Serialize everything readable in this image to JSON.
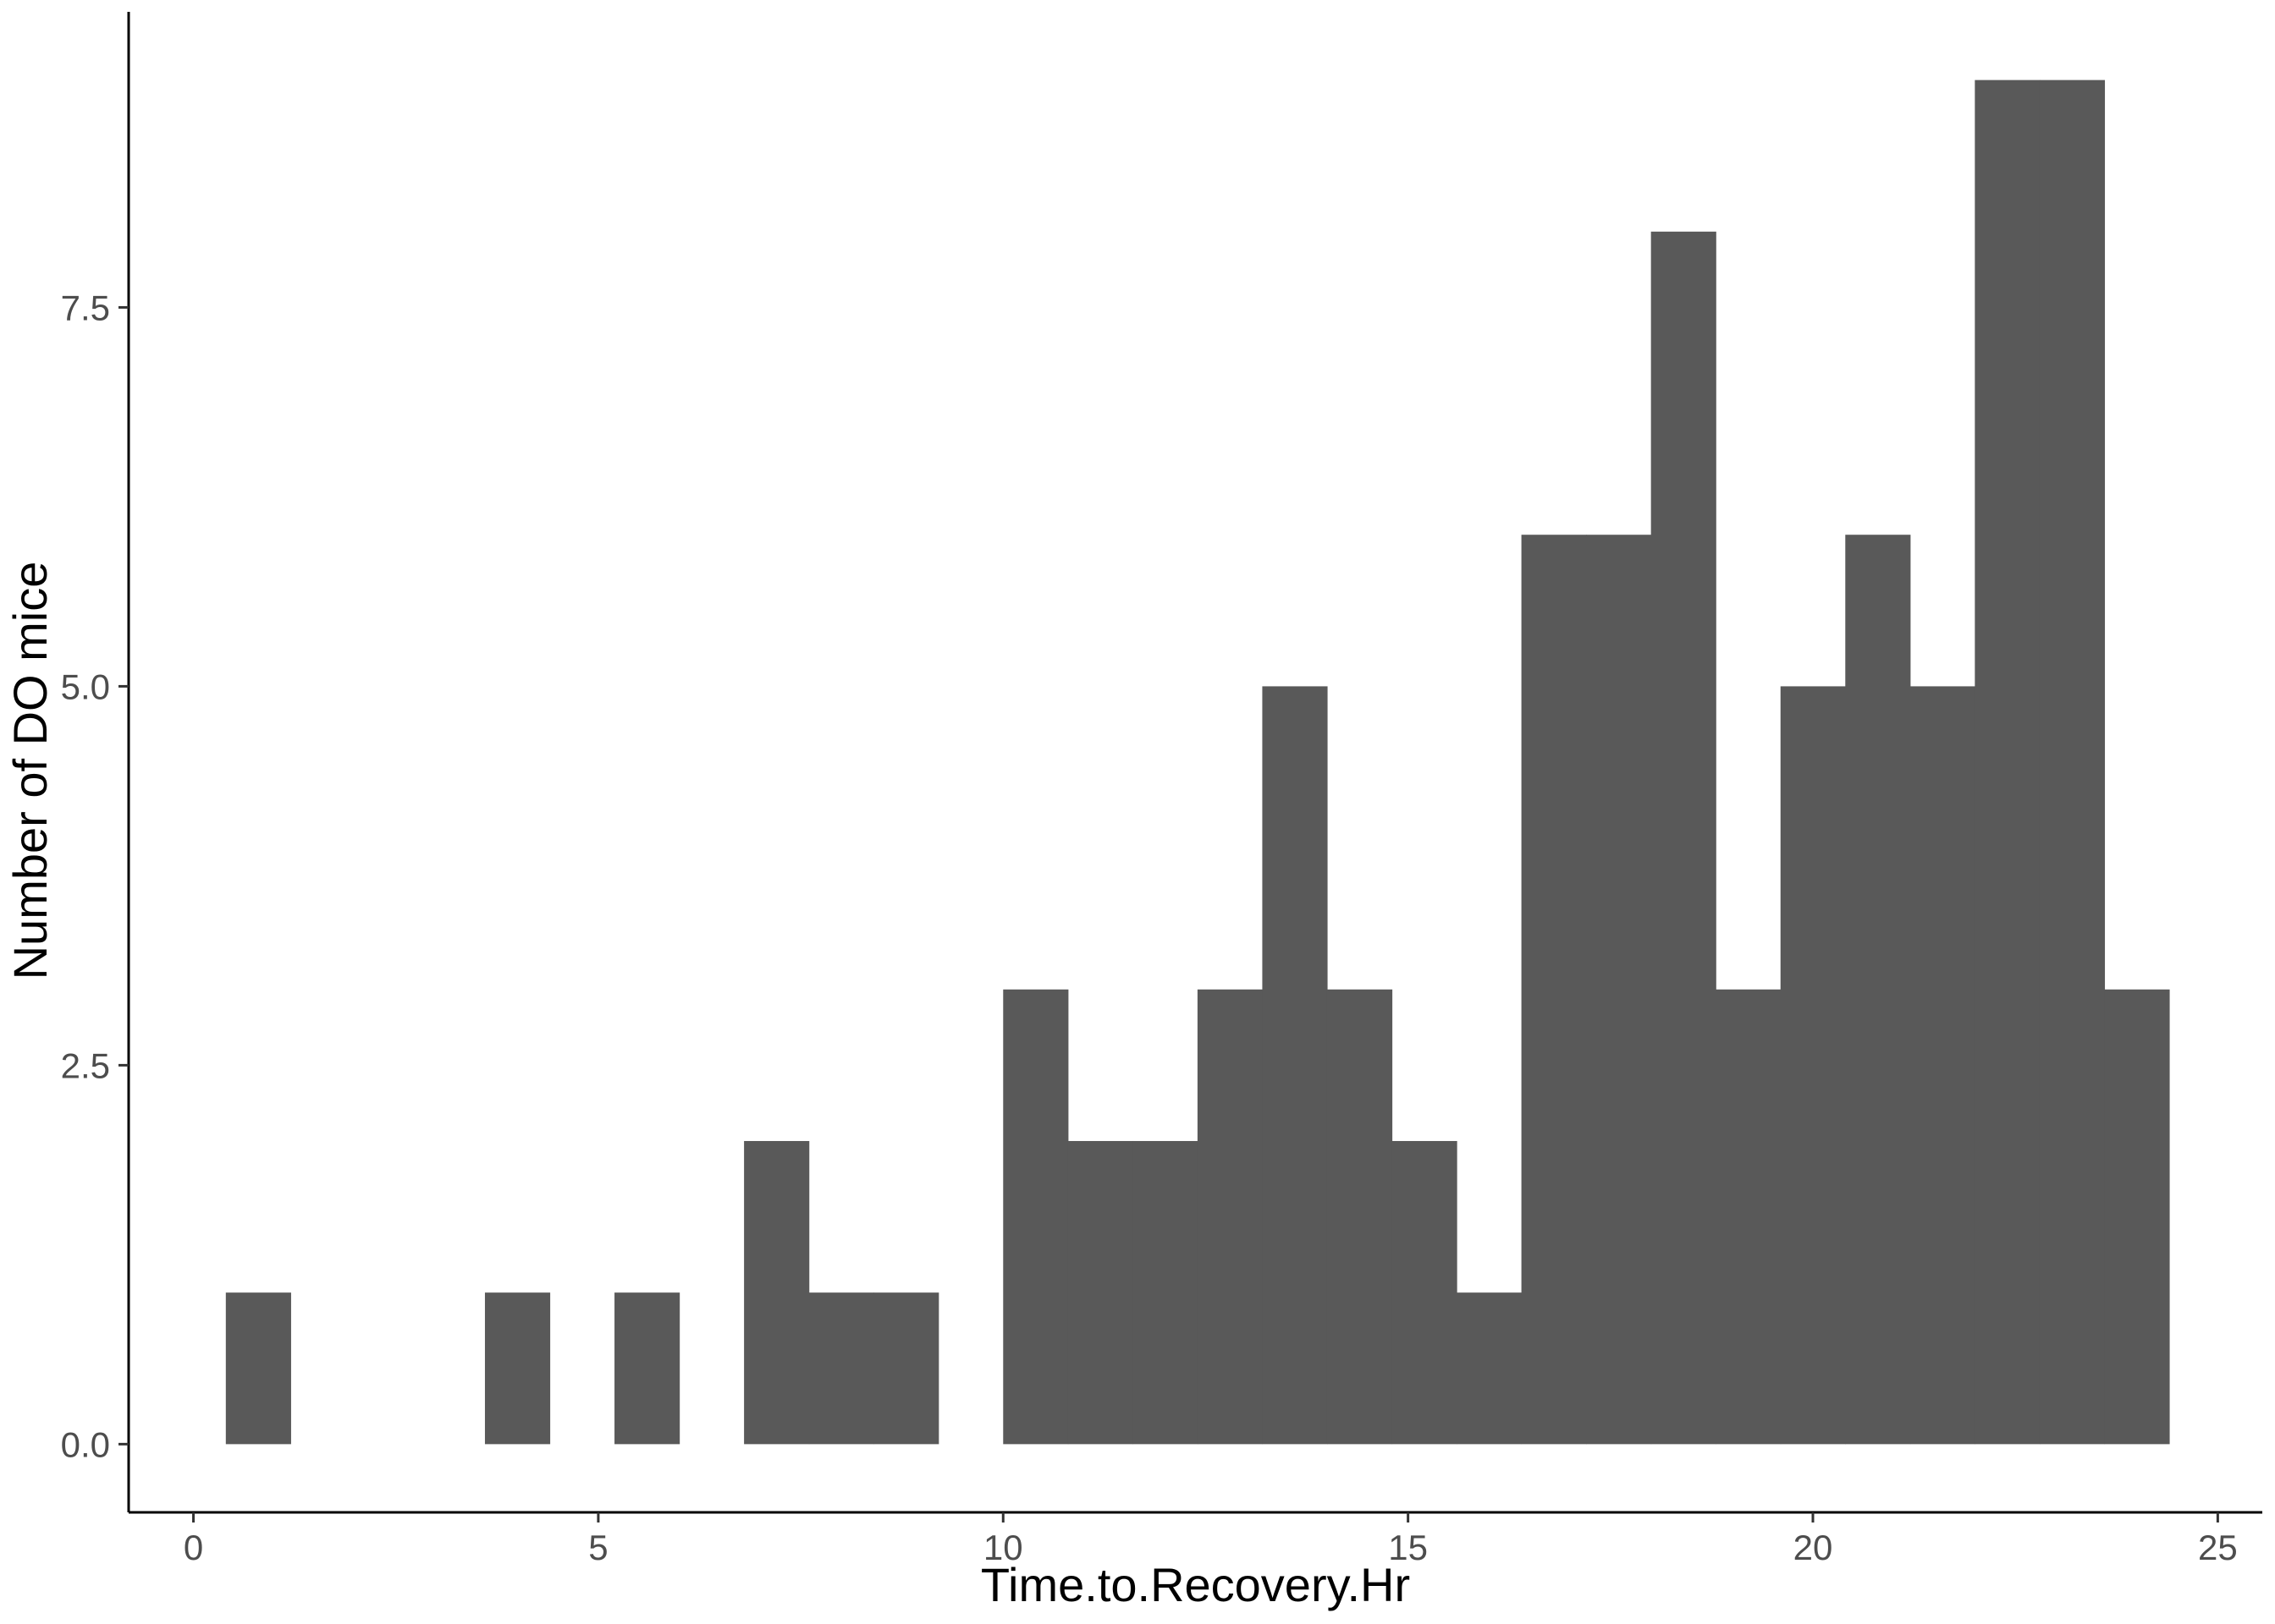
{
  "chart_data": {
    "type": "bar",
    "xlabel": "Time.to.Recovery.Hr",
    "ylabel": "Number of DO mice",
    "x_ticks": [
      0,
      5,
      10,
      15,
      20,
      25
    ],
    "x_tick_labels": [
      "0",
      "5",
      "10",
      "15",
      "20",
      "25"
    ],
    "y_ticks": [
      0,
      2.5,
      5,
      7.5
    ],
    "y_tick_labels": [
      "0.0",
      "2.5",
      "5.0",
      "7.5"
    ],
    "xlim": [
      -0.8,
      25.55
    ],
    "ylim": [
      -0.45,
      9.45
    ],
    "grid": false,
    "legend": "none",
    "bar_color": "#595959",
    "bins": [
      {
        "x0": 0.4,
        "x1": 1.2,
        "count": 1
      },
      {
        "x0": 3.6,
        "x1": 4.4,
        "count": 1
      },
      {
        "x0": 5.2,
        "x1": 6.0,
        "count": 1
      },
      {
        "x0": 6.8,
        "x1": 7.6,
        "count": 2
      },
      {
        "x0": 7.6,
        "x1": 8.4,
        "count": 1
      },
      {
        "x0": 8.4,
        "x1": 9.2,
        "count": 1
      },
      {
        "x0": 10.0,
        "x1": 10.8,
        "count": 3
      },
      {
        "x0": 10.8,
        "x1": 11.6,
        "count": 2
      },
      {
        "x0": 11.6,
        "x1": 12.4,
        "count": 2
      },
      {
        "x0": 12.4,
        "x1": 13.2,
        "count": 3
      },
      {
        "x0": 13.2,
        "x1": 14.0,
        "count": 5
      },
      {
        "x0": 14.0,
        "x1": 14.8,
        "count": 3
      },
      {
        "x0": 14.8,
        "x1": 15.6,
        "count": 2
      },
      {
        "x0": 15.6,
        "x1": 16.4,
        "count": 1
      },
      {
        "x0": 16.4,
        "x1": 17.2,
        "count": 6
      },
      {
        "x0": 17.2,
        "x1": 18.0,
        "count": 6
      },
      {
        "x0": 18.0,
        "x1": 18.8,
        "count": 8
      },
      {
        "x0": 18.8,
        "x1": 19.6,
        "count": 3
      },
      {
        "x0": 19.6,
        "x1": 20.4,
        "count": 5
      },
      {
        "x0": 20.4,
        "x1": 21.2,
        "count": 6
      },
      {
        "x0": 21.2,
        "x1": 22.0,
        "count": 5
      },
      {
        "x0": 22.0,
        "x1": 22.8,
        "count": 9
      },
      {
        "x0": 22.8,
        "x1": 23.6,
        "count": 9
      },
      {
        "x0": 23.6,
        "x1": 24.4,
        "count": 3
      }
    ]
  }
}
